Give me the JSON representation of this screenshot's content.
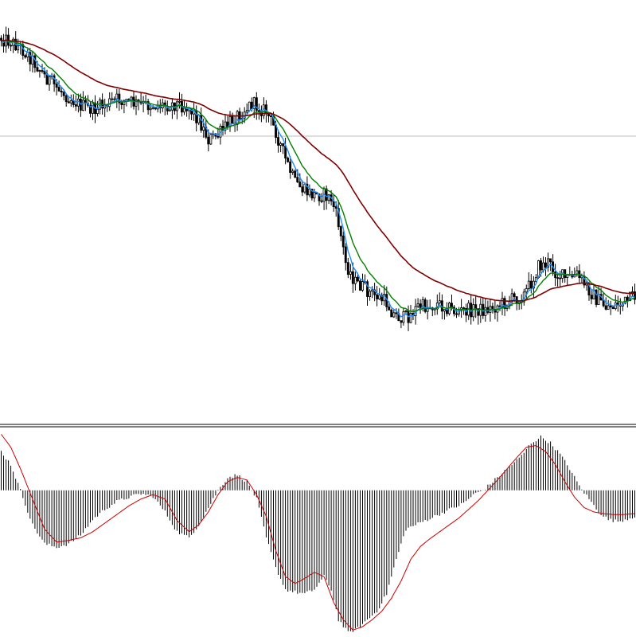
{
  "chart_data": [
    {
      "type": "candlestick",
      "panel": "price",
      "grid": false,
      "horizontal_reference_line": true,
      "overlay_series": [
        {
          "color": "#1e90ff",
          "style": "fast moving average"
        },
        {
          "color": "#008000",
          "style": "medium moving average"
        },
        {
          "color": "#800000",
          "style": "slow moving average"
        }
      ],
      "candle_color": "#000000",
      "profile": [
        [
          0,
          48
        ],
        [
          4,
          52
        ],
        [
          8,
          60
        ],
        [
          13,
          75
        ],
        [
          18,
          95
        ],
        [
          23,
          110
        ],
        [
          28,
          122
        ],
        [
          33,
          132
        ],
        [
          38,
          138
        ],
        [
          43,
          132
        ],
        [
          48,
          125
        ],
        [
          53,
          128
        ],
        [
          58,
          132
        ],
        [
          63,
          132
        ],
        [
          68,
          132
        ],
        [
          73,
          130
        ],
        [
          78,
          135
        ],
        [
          82,
          150
        ],
        [
          86,
          175
        ],
        [
          90,
          170
        ],
        [
          93,
          160
        ],
        [
          96,
          150
        ],
        [
          100,
          140
        ],
        [
          104,
          130
        ],
        [
          107,
          135
        ],
        [
          110,
          140
        ],
        [
          114,
          165
        ],
        [
          118,
          200
        ],
        [
          122,
          230
        ],
        [
          126,
          240
        ],
        [
          130,
          245
        ],
        [
          134,
          245
        ],
        [
          137,
          250
        ],
        [
          140,
          280
        ],
        [
          143,
          330
        ],
        [
          147,
          355
        ],
        [
          150,
          360
        ],
        [
          153,
          368
        ],
        [
          156,
          372
        ],
        [
          160,
          380
        ],
        [
          163,
          395
        ],
        [
          167,
          400
        ],
        [
          170,
          395
        ],
        [
          173,
          385
        ],
        [
          177,
          385
        ],
        [
          181,
          382
        ],
        [
          185,
          385
        ],
        [
          189,
          392
        ],
        [
          193,
          390
        ],
        [
          197,
          388
        ],
        [
          201,
          390
        ],
        [
          205,
          385
        ],
        [
          209,
          380
        ],
        [
          213,
          375
        ],
        [
          217,
          370
        ],
        [
          220,
          355
        ],
        [
          223,
          335
        ],
        [
          227,
          330
        ],
        [
          231,
          345
        ],
        [
          235,
          350
        ],
        [
          239,
          345
        ],
        [
          243,
          360
        ],
        [
          247,
          375
        ],
        [
          251,
          385
        ],
        [
          255,
          383
        ],
        [
          259,
          380
        ],
        [
          263,
          372
        ]
      ],
      "candle_count": 264,
      "y_range": [
        0,
        530
      ]
    },
    {
      "type": "histogram_with_signal",
      "panel": "oscillator",
      "histogram_color": "#000000",
      "signal_color": "#cc0000",
      "zero_level": 0,
      "histogram_profile": [
        [
          0,
          45
        ],
        [
          4,
          30
        ],
        [
          8,
          0
        ],
        [
          13,
          -40
        ],
        [
          18,
          -62
        ],
        [
          23,
          -66
        ],
        [
          28,
          -62
        ],
        [
          33,
          -52
        ],
        [
          38,
          -34
        ],
        [
          43,
          -22
        ],
        [
          48,
          -13
        ],
        [
          53,
          -8
        ],
        [
          58,
          -4
        ],
        [
          63,
          -7
        ],
        [
          68,
          -25
        ],
        [
          73,
          -48
        ],
        [
          78,
          -55
        ],
        [
          82,
          -40
        ],
        [
          86,
          -20
        ],
        [
          90,
          0
        ],
        [
          94,
          15
        ],
        [
          98,
          18
        ],
        [
          102,
          10
        ],
        [
          106,
          -10
        ],
        [
          110,
          -55
        ],
        [
          114,
          -90
        ],
        [
          118,
          -115
        ],
        [
          122,
          -118
        ],
        [
          126,
          -120
        ],
        [
          130,
          -115
        ],
        [
          134,
          -100
        ],
        [
          137,
          -115
        ],
        [
          140,
          -150
        ],
        [
          144,
          -165
        ],
        [
          148,
          -160
        ],
        [
          152,
          -150
        ],
        [
          156,
          -140
        ],
        [
          160,
          -120
        ],
        [
          164,
          -80
        ],
        [
          168,
          -45
        ],
        [
          172,
          -40
        ],
        [
          176,
          -35
        ],
        [
          180,
          -30
        ],
        [
          184,
          -25
        ],
        [
          188,
          -20
        ],
        [
          192,
          -15
        ],
        [
          196,
          -5
        ],
        [
          200,
          0
        ],
        [
          204,
          10
        ],
        [
          208,
          20
        ],
        [
          212,
          30
        ],
        [
          216,
          40
        ],
        [
          220,
          55
        ],
        [
          224,
          62
        ],
        [
          228,
          55
        ],
        [
          232,
          42
        ],
        [
          236,
          25
        ],
        [
          240,
          5
        ],
        [
          244,
          -10
        ],
        [
          248,
          -25
        ],
        [
          252,
          -34
        ],
        [
          256,
          -36
        ],
        [
          260,
          -33
        ],
        [
          263,
          -30
        ]
      ],
      "signal_profile": [
        [
          0,
          65
        ],
        [
          4,
          50
        ],
        [
          8,
          25
        ],
        [
          13,
          -10
        ],
        [
          18,
          -45
        ],
        [
          23,
          -60
        ],
        [
          28,
          -58
        ],
        [
          33,
          -55
        ],
        [
          38,
          -48
        ],
        [
          43,
          -38
        ],
        [
          48,
          -28
        ],
        [
          53,
          -18
        ],
        [
          58,
          -10
        ],
        [
          63,
          -5
        ],
        [
          68,
          -10
        ],
        [
          73,
          -35
        ],
        [
          78,
          -48
        ],
        [
          82,
          -40
        ],
        [
          86,
          -25
        ],
        [
          90,
          -5
        ],
        [
          94,
          10
        ],
        [
          98,
          15
        ],
        [
          102,
          12
        ],
        [
          106,
          -5
        ],
        [
          110,
          -30
        ],
        [
          114,
          -70
        ],
        [
          118,
          -100
        ],
        [
          122,
          -108
        ],
        [
          126,
          -102
        ],
        [
          130,
          -95
        ],
        [
          134,
          -100
        ],
        [
          138,
          -130
        ],
        [
          142,
          -150
        ],
        [
          146,
          -162
        ],
        [
          150,
          -158
        ],
        [
          154,
          -150
        ],
        [
          158,
          -140
        ],
        [
          162,
          -125
        ],
        [
          166,
          -105
        ],
        [
          170,
          -80
        ],
        [
          174,
          -65
        ],
        [
          178,
          -56
        ],
        [
          182,
          -48
        ],
        [
          186,
          -40
        ],
        [
          190,
          -32
        ],
        [
          194,
          -22
        ],
        [
          198,
          -12
        ],
        [
          202,
          0
        ],
        [
          206,
          12
        ],
        [
          210,
          25
        ],
        [
          214,
          38
        ],
        [
          218,
          50
        ],
        [
          222,
          52
        ],
        [
          226,
          45
        ],
        [
          230,
          30
        ],
        [
          234,
          10
        ],
        [
          238,
          -8
        ],
        [
          242,
          -20
        ],
        [
          246,
          -25
        ],
        [
          250,
          -27
        ],
        [
          254,
          -28
        ],
        [
          258,
          -28
        ],
        [
          263,
          -27
        ]
      ],
      "y_range": [
        -170,
        70
      ]
    }
  ]
}
